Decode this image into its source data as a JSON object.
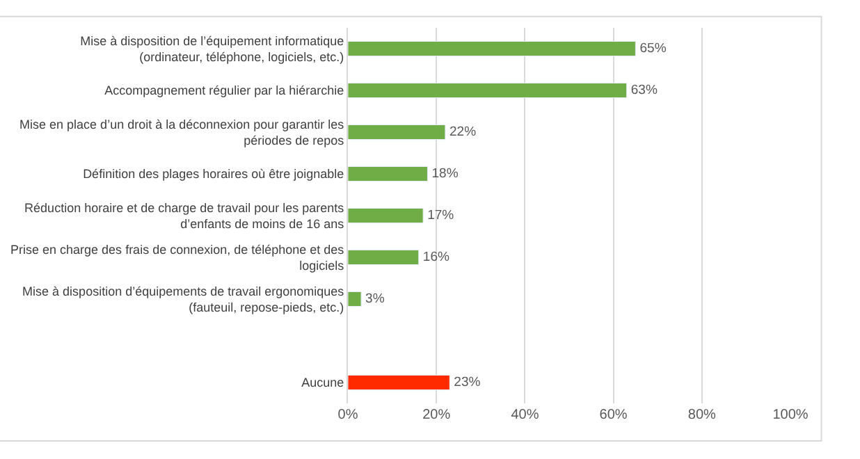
{
  "chart_data": {
    "type": "bar",
    "orientation": "horizontal",
    "categories": [
      "Mise à disposition de l’équipement informatique\n(ordinateur, téléphone, logiciels, etc.)",
      "Accompagnement régulier par la hiérarchie",
      "Mise en place d’un droit à la déconnexion pour garantir les\npériodes de repos",
      "Définition des plages horaires où être joignable",
      "Réduction horaire et de charge de travail pour les parents\nd’enfants de moins de 16 ans",
      "Prise en charge des frais de connexion, de téléphone et des\nlogiciels",
      "Mise à disposition d’équipements de travail ergonomiques\n(fauteuil, repose-pieds, etc.)",
      null,
      "Aucune"
    ],
    "values": [
      65,
      63,
      22,
      18,
      17,
      16,
      3,
      null,
      23
    ],
    "colors": [
      "#70ad47",
      "#70ad47",
      "#70ad47",
      "#70ad47",
      "#70ad47",
      "#70ad47",
      "#70ad47",
      "#70ad47",
      "#ff2a00"
    ],
    "value_labels": [
      "65%",
      "63%",
      "22%",
      "18%",
      "17%",
      "16%",
      "3%",
      null,
      "23%"
    ],
    "xlim": [
      0,
      100
    ],
    "xticks": [
      {
        "value": 0,
        "label": "0%"
      },
      {
        "value": 20,
        "label": "20%"
      },
      {
        "value": 40,
        "label": "40%"
      },
      {
        "value": 60,
        "label": "60%"
      },
      {
        "value": 80,
        "label": "80%"
      },
      {
        "value": 100,
        "label": "100%"
      }
    ],
    "grid": "x",
    "legend": false
  }
}
